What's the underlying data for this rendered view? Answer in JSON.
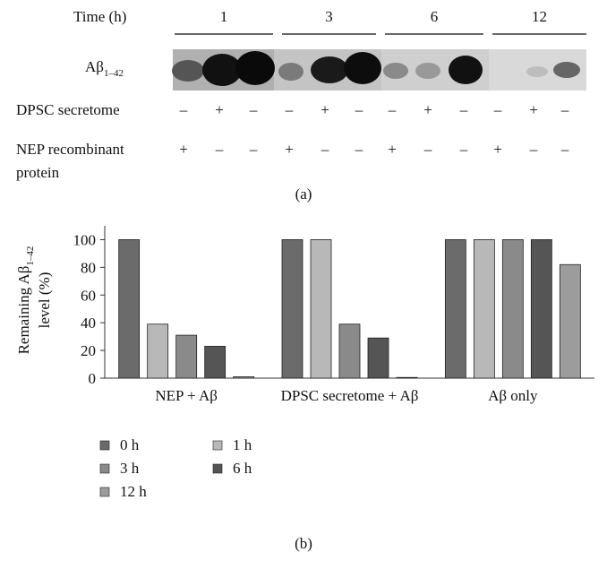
{
  "panel_a": {
    "time_label": "Time (h)",
    "times": [
      "1",
      "3",
      "6",
      "12"
    ],
    "band_label": {
      "text": "Aβ",
      "sub": "1–42"
    },
    "rows": [
      {
        "label": [
          "DPSC secretome"
        ],
        "signs": [
          "–",
          "+",
          "–",
          "–",
          "+",
          "–",
          "–",
          "+",
          "–",
          "–",
          "+",
          "–"
        ]
      },
      {
        "label": [
          "NEP recombinant",
          "protein"
        ],
        "signs": [
          "+",
          "–",
          "–",
          "+",
          "–",
          "–",
          "+",
          "–",
          "–",
          "+",
          "–",
          "–"
        ]
      }
    ],
    "caption": "(a)"
  },
  "chart_data": {
    "type": "bar",
    "y_label": {
      "line1": "Remaining Aβ",
      "sub": "1–42",
      "line2": "level (%)"
    },
    "categories": [
      "NEP + Aβ",
      "DPSC secretome + Aβ",
      "Aβ only"
    ],
    "series": [
      {
        "name": "0 h",
        "color": "#6b6b6b",
        "values": [
          100,
          100,
          100
        ]
      },
      {
        "name": "1 h",
        "color": "#b8b8b8",
        "values": [
          39,
          100,
          100
        ]
      },
      {
        "name": "3 h",
        "color": "#8a8a8a",
        "values": [
          31,
          39,
          100
        ]
      },
      {
        "name": "6 h",
        "color": "#555555",
        "values": [
          23,
          29,
          100
        ]
      },
      {
        "name": "12 h",
        "color": "#9c9c9c",
        "values": [
          1,
          0.5,
          82
        ]
      }
    ],
    "ylim": [
      0,
      110
    ],
    "yticks": [
      0,
      20,
      40,
      60,
      80,
      100
    ],
    "legend_position": "bottom-left"
  },
  "caption_b": "(b)"
}
